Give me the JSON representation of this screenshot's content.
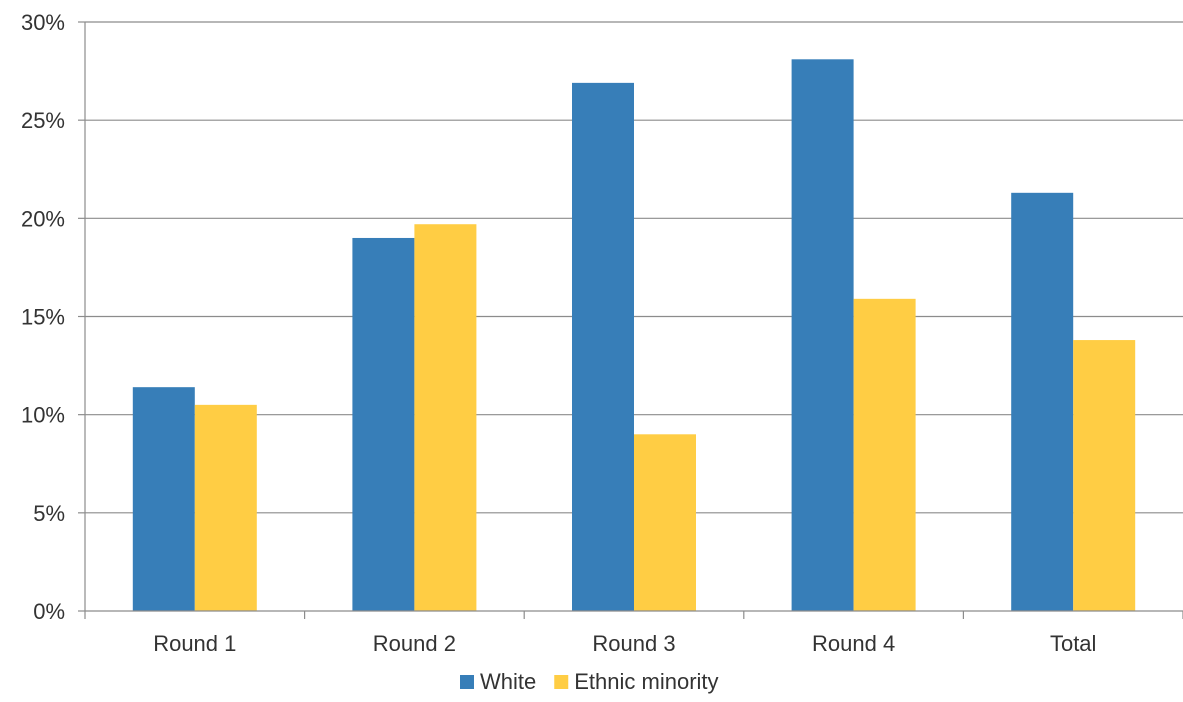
{
  "chart_data": {
    "type": "bar",
    "categories": [
      "Round 1",
      "Round 2",
      "Round 3",
      "Round 4",
      "Total"
    ],
    "series": [
      {
        "name": "White",
        "color": "#377EB8",
        "values": [
          11.4,
          19.0,
          26.9,
          28.1,
          21.3
        ]
      },
      {
        "name": "Ethnic minority",
        "color": "#FFCD44",
        "values": [
          10.5,
          19.7,
          9.0,
          15.9,
          13.8
        ]
      }
    ],
    "ylim": [
      0,
      30
    ],
    "yticks": [
      0,
      5,
      10,
      15,
      20,
      25,
      30
    ],
    "ytick_labels": [
      "0%",
      "5%",
      "10%",
      "15%",
      "20%",
      "25%",
      "30%"
    ],
    "grid": true,
    "legend": "bottom-center",
    "title": "",
    "xlabel": "",
    "ylabel": ""
  }
}
